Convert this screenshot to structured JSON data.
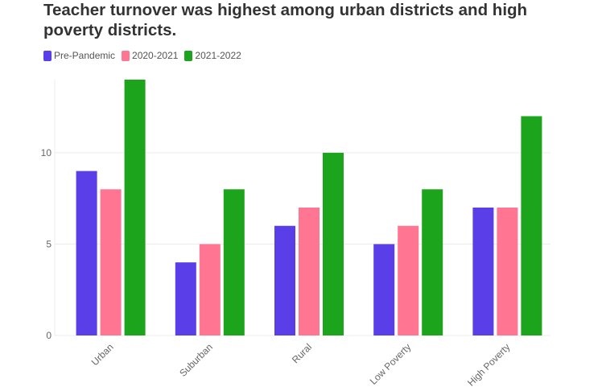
{
  "chart_data": {
    "type": "bar",
    "title": "Teacher turnover was highest among urban districts and high poverty districts.",
    "xlabel": "",
    "ylabel": "",
    "categories": [
      "Urban",
      "Suburban",
      "Rural",
      "Low Poverty",
      "High Poverty"
    ],
    "series": [
      {
        "name": "Pre-Pandemic",
        "color": "#5a3ee8",
        "values": [
          9,
          4,
          6,
          5,
          7
        ]
      },
      {
        "name": "2020-2021",
        "color": "#ff7592",
        "values": [
          8,
          5,
          7,
          6,
          7
        ]
      },
      {
        "name": "2021-2022",
        "color": "#1ca41c",
        "values": [
          14,
          8,
          10,
          8,
          12
        ]
      }
    ],
    "ylim": [
      0,
      14
    ],
    "yticks": [
      0,
      5,
      10
    ],
    "grid": true,
    "legend": "top-left"
  }
}
